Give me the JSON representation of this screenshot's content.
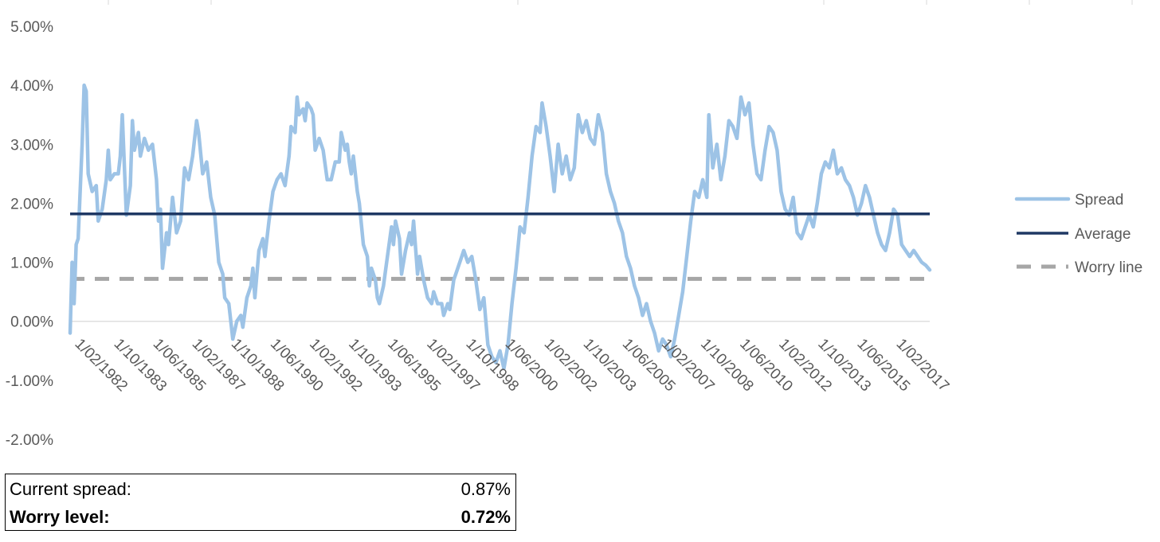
{
  "chart_data": {
    "type": "line",
    "y_ticks": [
      "5.00%",
      "4.00%",
      "3.00%",
      "2.00%",
      "1.00%",
      "0.00%",
      "-1.00%",
      "-2.00%"
    ],
    "ylim": [
      -0.02,
      0.05
    ],
    "x_ticks": [
      "1/02/1982",
      "1/10/1983",
      "1/06/1985",
      "1/02/1987",
      "1/10/1988",
      "1/06/1990",
      "1/02/1992",
      "1/10/1993",
      "1/06/1995",
      "1/02/1997",
      "1/10/1998",
      "1/06/2000",
      "1/02/2002",
      "1/10/2003",
      "1/06/2005",
      "1/02/2007",
      "1/10/2008",
      "1/06/2010",
      "1/02/2012",
      "1/10/2013",
      "1/06/2015",
      "1/02/2017"
    ],
    "xlim": [
      "1982-01",
      "2017-09"
    ],
    "grid": false,
    "legend": "right",
    "series": [
      {
        "name": "Spread",
        "color": "#9dc3e6",
        "points": [
          [
            "1982-01",
            -0.002
          ],
          [
            "1982-02",
            0.01
          ],
          [
            "1982-03",
            0.003
          ],
          [
            "1982-04",
            0.013
          ],
          [
            "1982-05",
            0.014
          ],
          [
            "1982-07",
            0.03
          ],
          [
            "1982-08",
            0.04
          ],
          [
            "1982-09",
            0.039
          ],
          [
            "1982-10",
            0.025
          ],
          [
            "1982-12",
            0.022
          ],
          [
            "1983-02",
            0.023
          ],
          [
            "1983-03",
            0.017
          ],
          [
            "1983-05",
            0.019
          ],
          [
            "1983-07",
            0.024
          ],
          [
            "1983-08",
            0.029
          ],
          [
            "1983-09",
            0.024
          ],
          [
            "1983-11",
            0.025
          ],
          [
            "1984-01",
            0.025
          ],
          [
            "1984-02",
            0.028
          ],
          [
            "1984-03",
            0.035
          ],
          [
            "1984-05",
            0.018
          ],
          [
            "1984-07",
            0.023
          ],
          [
            "1984-08",
            0.034
          ],
          [
            "1984-09",
            0.029
          ],
          [
            "1984-11",
            0.032
          ],
          [
            "1984-12",
            0.028
          ],
          [
            "1985-02",
            0.031
          ],
          [
            "1985-04",
            0.029
          ],
          [
            "1985-06",
            0.03
          ],
          [
            "1985-08",
            0.024
          ],
          [
            "1985-09",
            0.017
          ],
          [
            "1985-10",
            0.019
          ],
          [
            "1985-11",
            0.009
          ],
          [
            "1986-01",
            0.015
          ],
          [
            "1986-02",
            0.013
          ],
          [
            "1986-04",
            0.021
          ],
          [
            "1986-06",
            0.015
          ],
          [
            "1986-08",
            0.017
          ],
          [
            "1986-10",
            0.026
          ],
          [
            "1986-12",
            0.024
          ],
          [
            "1987-02",
            0.028
          ],
          [
            "1987-04",
            0.034
          ],
          [
            "1987-05",
            0.032
          ],
          [
            "1987-07",
            0.025
          ],
          [
            "1987-09",
            0.027
          ],
          [
            "1987-11",
            0.021
          ],
          [
            "1988-01",
            0.018
          ],
          [
            "1988-03",
            0.01
          ],
          [
            "1988-05",
            0.008
          ],
          [
            "1988-06",
            0.004
          ],
          [
            "1988-08",
            0.003
          ],
          [
            "1988-09",
            0.0
          ],
          [
            "1988-10",
            -0.003
          ],
          [
            "1988-12",
            0.0
          ],
          [
            "1989-02",
            0.001
          ],
          [
            "1989-03",
            -0.001
          ],
          [
            "1989-05",
            0.004
          ],
          [
            "1989-07",
            0.006
          ],
          [
            "1989-08",
            0.009
          ],
          [
            "1989-09",
            0.004
          ],
          [
            "1989-11",
            0.012
          ],
          [
            "1990-01",
            0.014
          ],
          [
            "1990-02",
            0.011
          ],
          [
            "1990-04",
            0.017
          ],
          [
            "1990-06",
            0.022
          ],
          [
            "1990-08",
            0.024
          ],
          [
            "1990-10",
            0.025
          ],
          [
            "1990-12",
            0.023
          ],
          [
            "1991-02",
            0.028
          ],
          [
            "1991-03",
            0.033
          ],
          [
            "1991-05",
            0.032
          ],
          [
            "1991-06",
            0.038
          ],
          [
            "1991-07",
            0.035
          ],
          [
            "1991-09",
            0.036
          ],
          [
            "1991-10",
            0.034
          ],
          [
            "1991-11",
            0.037
          ],
          [
            "1992-01",
            0.036
          ],
          [
            "1992-02",
            0.035
          ],
          [
            "1992-03",
            0.029
          ],
          [
            "1992-05",
            0.031
          ],
          [
            "1992-07",
            0.029
          ],
          [
            "1992-09",
            0.024
          ],
          [
            "1992-11",
            0.024
          ],
          [
            "1993-01",
            0.027
          ],
          [
            "1993-03",
            0.027
          ],
          [
            "1993-04",
            0.032
          ],
          [
            "1993-06",
            0.029
          ],
          [
            "1993-07",
            0.03
          ],
          [
            "1993-08",
            0.027
          ],
          [
            "1993-09",
            0.025
          ],
          [
            "1993-10",
            0.028
          ],
          [
            "1993-12",
            0.022
          ],
          [
            "1994-01",
            0.02
          ],
          [
            "1994-03",
            0.013
          ],
          [
            "1994-05",
            0.011
          ],
          [
            "1994-06",
            0.006
          ],
          [
            "1994-07",
            0.009
          ],
          [
            "1994-09",
            0.007
          ],
          [
            "1994-10",
            0.004
          ],
          [
            "1994-11",
            0.003
          ],
          [
            "1995-01",
            0.006
          ],
          [
            "1995-03",
            0.011
          ],
          [
            "1995-05",
            0.016
          ],
          [
            "1995-06",
            0.013
          ],
          [
            "1995-07",
            0.017
          ],
          [
            "1995-09",
            0.014
          ],
          [
            "1995-10",
            0.008
          ],
          [
            "1995-12",
            0.012
          ],
          [
            "1996-02",
            0.015
          ],
          [
            "1996-03",
            0.013
          ],
          [
            "1996-04",
            0.017
          ],
          [
            "1996-06",
            0.008
          ],
          [
            "1996-07",
            0.011
          ],
          [
            "1996-09",
            0.007
          ],
          [
            "1996-11",
            0.004
          ],
          [
            "1997-01",
            0.003
          ],
          [
            "1997-02",
            0.005
          ],
          [
            "1997-04",
            0.003
          ],
          [
            "1997-06",
            0.003
          ],
          [
            "1997-07",
            0.001
          ],
          [
            "1997-09",
            0.003
          ],
          [
            "1997-10",
            0.002
          ],
          [
            "1997-12",
            0.007
          ],
          [
            "1998-02",
            0.009
          ],
          [
            "1998-04",
            0.011
          ],
          [
            "1998-05",
            0.012
          ],
          [
            "1998-07",
            0.01
          ],
          [
            "1998-09",
            0.011
          ],
          [
            "1998-11",
            0.007
          ],
          [
            "1999-01",
            0.002
          ],
          [
            "1999-03",
            0.004
          ],
          [
            "1999-05",
            -0.004
          ],
          [
            "1999-07",
            -0.006
          ],
          [
            "1999-09",
            -0.007
          ],
          [
            "1999-11",
            -0.005
          ],
          [
            "2000-01",
            -0.008
          ],
          [
            "2000-03",
            -0.004
          ],
          [
            "2000-05",
            0.003
          ],
          [
            "2000-07",
            0.009
          ],
          [
            "2000-09",
            0.016
          ],
          [
            "2000-11",
            0.015
          ],
          [
            "2001-01",
            0.021
          ],
          [
            "2001-03",
            0.028
          ],
          [
            "2001-05",
            0.033
          ],
          [
            "2001-07",
            0.032
          ],
          [
            "2001-08",
            0.037
          ],
          [
            "2001-10",
            0.033
          ],
          [
            "2001-12",
            0.028
          ],
          [
            "2002-02",
            0.022
          ],
          [
            "2002-04",
            0.03
          ],
          [
            "2002-06",
            0.025
          ],
          [
            "2002-08",
            0.028
          ],
          [
            "2002-10",
            0.024
          ],
          [
            "2002-12",
            0.026
          ],
          [
            "2003-02",
            0.035
          ],
          [
            "2003-04",
            0.032
          ],
          [
            "2003-06",
            0.034
          ],
          [
            "2003-08",
            0.031
          ],
          [
            "2003-10",
            0.03
          ],
          [
            "2003-12",
            0.035
          ],
          [
            "2004-02",
            0.032
          ],
          [
            "2004-04",
            0.025
          ],
          [
            "2004-06",
            0.022
          ],
          [
            "2004-08",
            0.02
          ],
          [
            "2004-10",
            0.017
          ],
          [
            "2004-12",
            0.015
          ],
          [
            "2005-02",
            0.011
          ],
          [
            "2005-04",
            0.009
          ],
          [
            "2005-06",
            0.006
          ],
          [
            "2005-08",
            0.004
          ],
          [
            "2005-10",
            0.001
          ],
          [
            "2005-12",
            0.003
          ],
          [
            "2006-02",
            0.0
          ],
          [
            "2006-04",
            -0.002
          ],
          [
            "2006-06",
            -0.005
          ],
          [
            "2006-08",
            -0.003
          ],
          [
            "2006-10",
            -0.004
          ],
          [
            "2006-12",
            -0.006
          ],
          [
            "2007-02",
            -0.003
          ],
          [
            "2007-04",
            0.001
          ],
          [
            "2007-06",
            0.005
          ],
          [
            "2007-08",
            0.011
          ],
          [
            "2007-10",
            0.017
          ],
          [
            "2007-12",
            0.022
          ],
          [
            "2008-02",
            0.021
          ],
          [
            "2008-04",
            0.024
          ],
          [
            "2008-06",
            0.021
          ],
          [
            "2008-07",
            0.035
          ],
          [
            "2008-09",
            0.026
          ],
          [
            "2008-11",
            0.03
          ],
          [
            "2009-01",
            0.024
          ],
          [
            "2009-03",
            0.028
          ],
          [
            "2009-05",
            0.034
          ],
          [
            "2009-07",
            0.033
          ],
          [
            "2009-09",
            0.031
          ],
          [
            "2009-11",
            0.038
          ],
          [
            "2010-01",
            0.035
          ],
          [
            "2010-03",
            0.037
          ],
          [
            "2010-05",
            0.03
          ],
          [
            "2010-07",
            0.025
          ],
          [
            "2010-09",
            0.024
          ],
          [
            "2010-11",
            0.029
          ],
          [
            "2011-01",
            0.033
          ],
          [
            "2011-03",
            0.032
          ],
          [
            "2011-05",
            0.029
          ],
          [
            "2011-07",
            0.022
          ],
          [
            "2011-09",
            0.019
          ],
          [
            "2011-11",
            0.018
          ],
          [
            "2012-01",
            0.021
          ],
          [
            "2012-03",
            0.015
          ],
          [
            "2012-05",
            0.014
          ],
          [
            "2012-07",
            0.016
          ],
          [
            "2012-09",
            0.018
          ],
          [
            "2012-11",
            0.016
          ],
          [
            "2013-01",
            0.02
          ],
          [
            "2013-03",
            0.025
          ],
          [
            "2013-05",
            0.027
          ],
          [
            "2013-07",
            0.026
          ],
          [
            "2013-09",
            0.029
          ],
          [
            "2013-11",
            0.025
          ],
          [
            "2014-01",
            0.026
          ],
          [
            "2014-03",
            0.024
          ],
          [
            "2014-05",
            0.023
          ],
          [
            "2014-07",
            0.021
          ],
          [
            "2014-09",
            0.018
          ],
          [
            "2014-11",
            0.02
          ],
          [
            "2015-01",
            0.023
          ],
          [
            "2015-03",
            0.021
          ],
          [
            "2015-05",
            0.018
          ],
          [
            "2015-07",
            0.015
          ],
          [
            "2015-09",
            0.013
          ],
          [
            "2015-11",
            0.012
          ],
          [
            "2016-01",
            0.015
          ],
          [
            "2016-03",
            0.019
          ],
          [
            "2016-05",
            0.018
          ],
          [
            "2016-07",
            0.013
          ],
          [
            "2016-09",
            0.012
          ],
          [
            "2016-11",
            0.011
          ],
          [
            "2017-01",
            0.012
          ],
          [
            "2017-03",
            0.011
          ],
          [
            "2017-05",
            0.01
          ],
          [
            "2017-07",
            0.0095
          ],
          [
            "2017-09",
            0.0087
          ]
        ]
      },
      {
        "name": "Average",
        "color": "#1f3864",
        "value": 0.0182
      },
      {
        "name": "Worry line",
        "color": "#a6a6a6",
        "value": 0.0072
      }
    ]
  },
  "summary": {
    "current_label": "Current spread:",
    "current_value": "0.87%",
    "worry_label": "Worry level:",
    "worry_value": "0.72%"
  }
}
